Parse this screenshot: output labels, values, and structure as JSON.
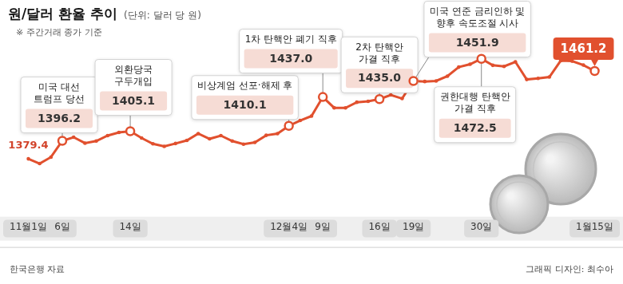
{
  "chart_data": {
    "type": "line",
    "title": "원/달러 환율 추이",
    "subtitle": "(단위: 달러 당 원)",
    "note": "※ 주간거래 종가 기준",
    "source": "한국은행 자료",
    "credit": "그래픽 디자인: 최수아",
    "categories": [
      "11월1일",
      null,
      null,
      "6일",
      null,
      null,
      null,
      null,
      null,
      "14일",
      null,
      null,
      null,
      null,
      null,
      null,
      null,
      null,
      null,
      null,
      null,
      null,
      null,
      "12월4일",
      null,
      null,
      "9일",
      null,
      null,
      null,
      null,
      "16일",
      null,
      null,
      "19일",
      null,
      null,
      null,
      null,
      null,
      "30일",
      null,
      null,
      null,
      null,
      null,
      null,
      null,
      null,
      null,
      "1월15일"
    ],
    "values": [
      1379.4,
      1375,
      1381,
      1396.2,
      1399.5,
      1394,
      1396,
      1401,
      1404,
      1405.1,
      1398.8,
      1393.4,
      1391,
      1393.7,
      1396.5,
      1402.9,
      1398,
      1401,
      1396,
      1393,
      1394.7,
      1401.3,
      1402.9,
      1410.1,
      1415.1,
      1419.2,
      1437.0,
      1426.9,
      1426.8,
      1432.1,
      1433.0,
      1435.0,
      1438.9,
      1435.5,
      1451.9,
      1451.4,
      1451.9,
      1456.4,
      1464.8,
      1467.5,
      1472.5,
      1466.5,
      1465.5,
      1469.7,
      1453.3,
      1454.3,
      1455.6,
      1470.8,
      1470.4,
      1466.7,
      1461.2
    ],
    "color": "#e1502e",
    "marker": "circle",
    "line_style": "solid",
    "ylim": [
      1330,
      1505
    ],
    "grid": false,
    "tick_labels": "x",
    "annotations": [
      {
        "category": "11월1일",
        "value": 1379.4,
        "value_label": "1379.4"
      },
      {
        "category": "6일",
        "text": [
          "미국 대선",
          "트럼프 당선"
        ],
        "value": 1396.2,
        "value_label": "1396.2"
      },
      {
        "category": "14일",
        "text": [
          "외환당국",
          "구두개입"
        ],
        "value": 1405.1,
        "value_label": "1405.1"
      },
      {
        "category": "12월4일",
        "text": [
          "비상계엄 선포·해제 후"
        ],
        "value": 1410.1,
        "value_label": "1410.1"
      },
      {
        "category": "9일",
        "text": [
          "1차 탄핵안 폐기 직후"
        ],
        "value": 1437.0,
        "value_label": "1437.0"
      },
      {
        "category": "16일",
        "text": [
          "2차 탄핵안",
          "가결 직후"
        ],
        "value": 1435.0,
        "value_label": "1435.0"
      },
      {
        "category": "19일",
        "text": [
          "미국 연준 금리인하 및",
          "향후 속도조절 시사"
        ],
        "value": 1451.9,
        "value_label": "1451.9"
      },
      {
        "category": "30일",
        "text": [
          "권한대행 탄핵안",
          "가결 직후"
        ],
        "value": 1472.5,
        "value_label": "1472.5"
      },
      {
        "category": "1월15일",
        "value": 1461.2,
        "value_label": "1461.2"
      }
    ]
  }
}
